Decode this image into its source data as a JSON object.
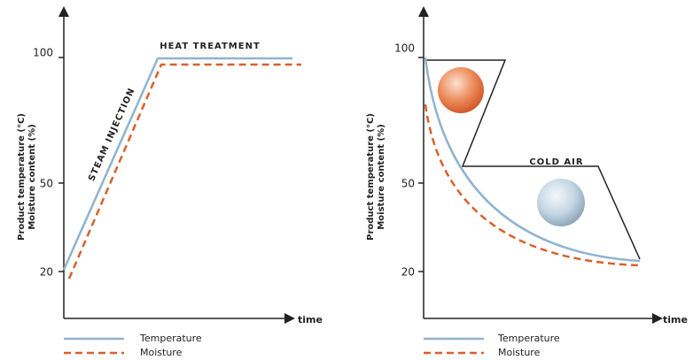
{
  "panels": [
    {
      "ticks": [
        "100",
        "50",
        "20"
      ],
      "y_label": [
        "Product temperature (°C)",
        "Moisture content (%)"
      ],
      "x_label": "time",
      "annotations": [
        "STEAM INJECTION",
        "HEAT TREATMENT"
      ],
      "legend": [
        "Temperature",
        "Moisture"
      ]
    },
    {
      "ticks": [
        "100",
        "50",
        "20"
      ],
      "y_label": [
        "Product temperature (°C)",
        "Moisture content (%)"
      ],
      "x_label": "time",
      "annotations": [
        "COLD AIR"
      ],
      "legend": [
        "Temperature",
        "Moisture"
      ]
    }
  ]
}
